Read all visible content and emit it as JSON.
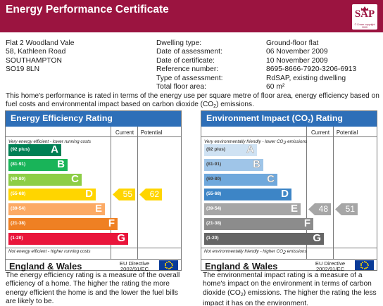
{
  "header": {
    "title": "Energy Performance Certificate",
    "logo_text": "SAP",
    "logo_copyright": "© Crown copyright 2009",
    "brand_color": "#9b1440"
  },
  "address": [
    "Flat 2 Woodland Vale",
    "58, Kathleen Road",
    "SOUTHAMPTON",
    "SO19 8LN"
  ],
  "details": {
    "labels": [
      "Dwelling type:",
      "Date of assessment:",
      "Date of certificate:",
      "Reference number:",
      "Type of assessment:",
      "Total floor area:"
    ],
    "values": [
      "Ground-floor flat",
      "06 November 2009",
      "10 November 2009",
      "8695-8666-7920-3206-6913",
      "RdSAP, existing dwelling",
      "60 m²"
    ]
  },
  "intro": {
    "before": "This home's performance is rated in terms of the energy use per square metre of floor area, energy efficiency based on fuel costs and environmental impact based on carbon dioxide (CO",
    "sub": "2",
    "after": ") emissions."
  },
  "energy_panel": {
    "title": "Energy Efficiency Rating",
    "current_label": "Current",
    "potential_label": "Potential",
    "top_note": "Very energy efficient - lower running costs",
    "bottom_note": "Not energy efficient - higher running costs",
    "bands": [
      {
        "range": "(92 plus)",
        "letter": "A",
        "color": "#008054"
      },
      {
        "range": "(81-91)",
        "letter": "B",
        "color": "#19b459"
      },
      {
        "range": "(69-80)",
        "letter": "C",
        "color": "#8dce46"
      },
      {
        "range": "(55-68)",
        "letter": "D",
        "color": "#ffd500"
      },
      {
        "range": "(39-54)",
        "letter": "E",
        "color": "#fcaa65"
      },
      {
        "range": "(21-38)",
        "letter": "F",
        "color": "#ef8023"
      },
      {
        "range": "(1-20)",
        "letter": "G",
        "color": "#e9153b"
      }
    ],
    "current": 55,
    "potential": 62,
    "current_color": "#ffd500",
    "potential_color": "#ffd500",
    "country": "England & Wales",
    "eu_line1": "EU Directive",
    "eu_line2": "2002/91/EC"
  },
  "env_panel": {
    "title_before": "Environment Impact (CO",
    "title_sub": "2",
    "title_after": ") Rating",
    "current_label": "Current",
    "potential_label": "Potential",
    "top_note_before": "Very environmentally friendly - lower CO",
    "top_note_sub": "2",
    "top_note_after": " emissions",
    "bottom_note_before": "Not environmentally friendly - higher CO",
    "bottom_note_sub": "2",
    "bottom_note_after": " emissions",
    "bands": [
      {
        "range": "(92 plus)",
        "letter": "A",
        "color": "#cfe2f3"
      },
      {
        "range": "(81-91)",
        "letter": "B",
        "color": "#9fc5e8"
      },
      {
        "range": "(69-80)",
        "letter": "C",
        "color": "#6fa8dc"
      },
      {
        "range": "(55-68)",
        "letter": "D",
        "color": "#3d85c6"
      },
      {
        "range": "(39-54)",
        "letter": "E",
        "color": "#a6a6a6"
      },
      {
        "range": "(21-38)",
        "letter": "F",
        "color": "#8c8c8c"
      },
      {
        "range": "(1-20)",
        "letter": "G",
        "color": "#666666"
      }
    ],
    "current": 48,
    "potential": 51,
    "current_color": "#a6a6a6",
    "potential_color": "#a6a6a6",
    "country": "England & Wales",
    "eu_line1": "EU Directive",
    "eu_line2": "2002/91/EC"
  },
  "desc_left": "The energy efficiency rating is a measure of the overall efficiency of a home. The higher the rating the more energy efficient the home is and the lower the fuel bills are likely to be.",
  "desc_right": {
    "before": "The environmental impact rating is a measure of a home's impact on the environment in terms of carbon dioxide (CO",
    "sub": "2",
    "after": ") emissions. The higher the rating the less impact it has on the environment."
  }
}
